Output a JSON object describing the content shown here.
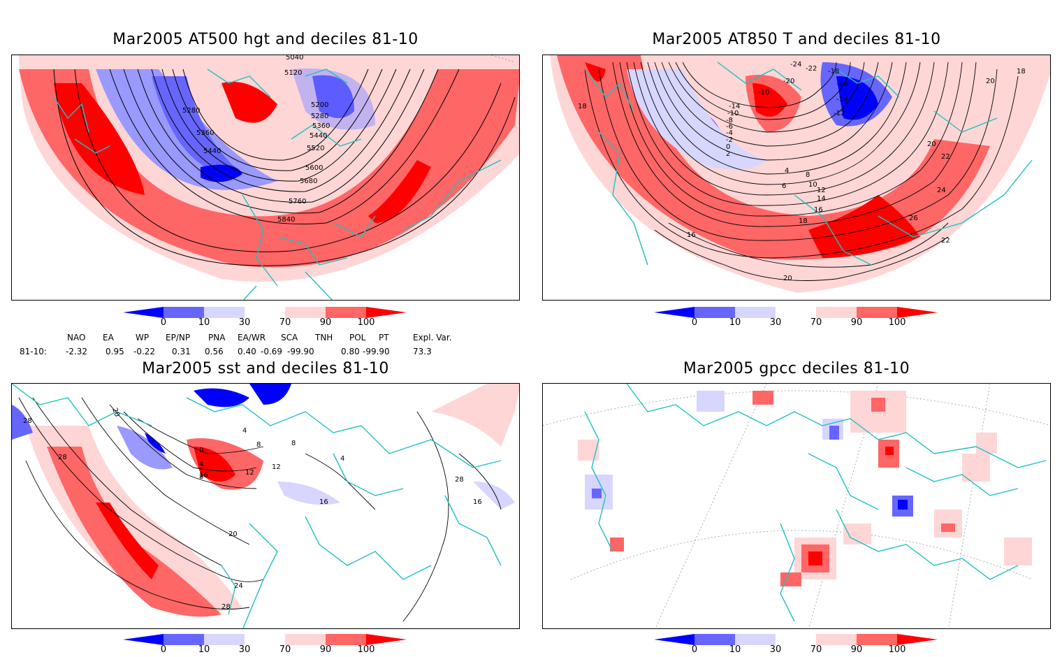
{
  "panels": [
    {
      "title": "Mar2005 AT500 hgt and deciles 81-10",
      "contour_labels": [
        "5040",
        "5120",
        "5200",
        "5280",
        "5360",
        "5440",
        "5520",
        "5600",
        "5680",
        "5760",
        "5840",
        "5280",
        "5360",
        "5440"
      ]
    },
    {
      "title": "Mar2005 AT850 T and deciles 81-10",
      "contour_labels": [
        "-24",
        "-22",
        "-18",
        "-20",
        "-16",
        "-14",
        "-10",
        "-12",
        "-14",
        "-10",
        "-8",
        "-6",
        "-4",
        "-2",
        "0",
        "2",
        "4",
        "6",
        "8",
        "10",
        "12",
        "14",
        "16",
        "18",
        "20",
        "22",
        "24",
        "26",
        "22",
        "20",
        "16",
        "18",
        "18",
        "20"
      ]
    },
    {
      "title": "Mar2005 sst and deciles 81-10",
      "contour_labels": [
        "20",
        "28",
        "28",
        "0",
        "4",
        "8",
        "12",
        "16",
        "4",
        "8",
        "12",
        "16",
        "20",
        "24",
        "28",
        "28",
        "16",
        "4",
        "8"
      ]
    },
    {
      "title": "Mar2005 gpcc deciles 81-10",
      "contour_labels": []
    }
  ],
  "colorbar": {
    "ticks": [
      "0",
      "10",
      "30",
      "70",
      "90",
      "100"
    ],
    "colors": [
      "#0000ff",
      "#6666ff",
      "#d6d6ff",
      "#ffffff",
      "#ffd6d6",
      "#ff6666",
      "#ff0000"
    ]
  },
  "indices": {
    "headers": [
      "NAO",
      "EA",
      "WP",
      "EP/NP",
      "PNA",
      "EA/WR",
      "SCA",
      "TNH",
      "POL",
      "PT",
      "Expl. Var."
    ],
    "row_label": "81-10:",
    "values": [
      "-2.32",
      "0.95",
      "-0.22",
      "0.31",
      "0.56",
      "0.40",
      "-0.69",
      "-99.90",
      "0.80",
      "-99.90",
      "73.3"
    ]
  }
}
